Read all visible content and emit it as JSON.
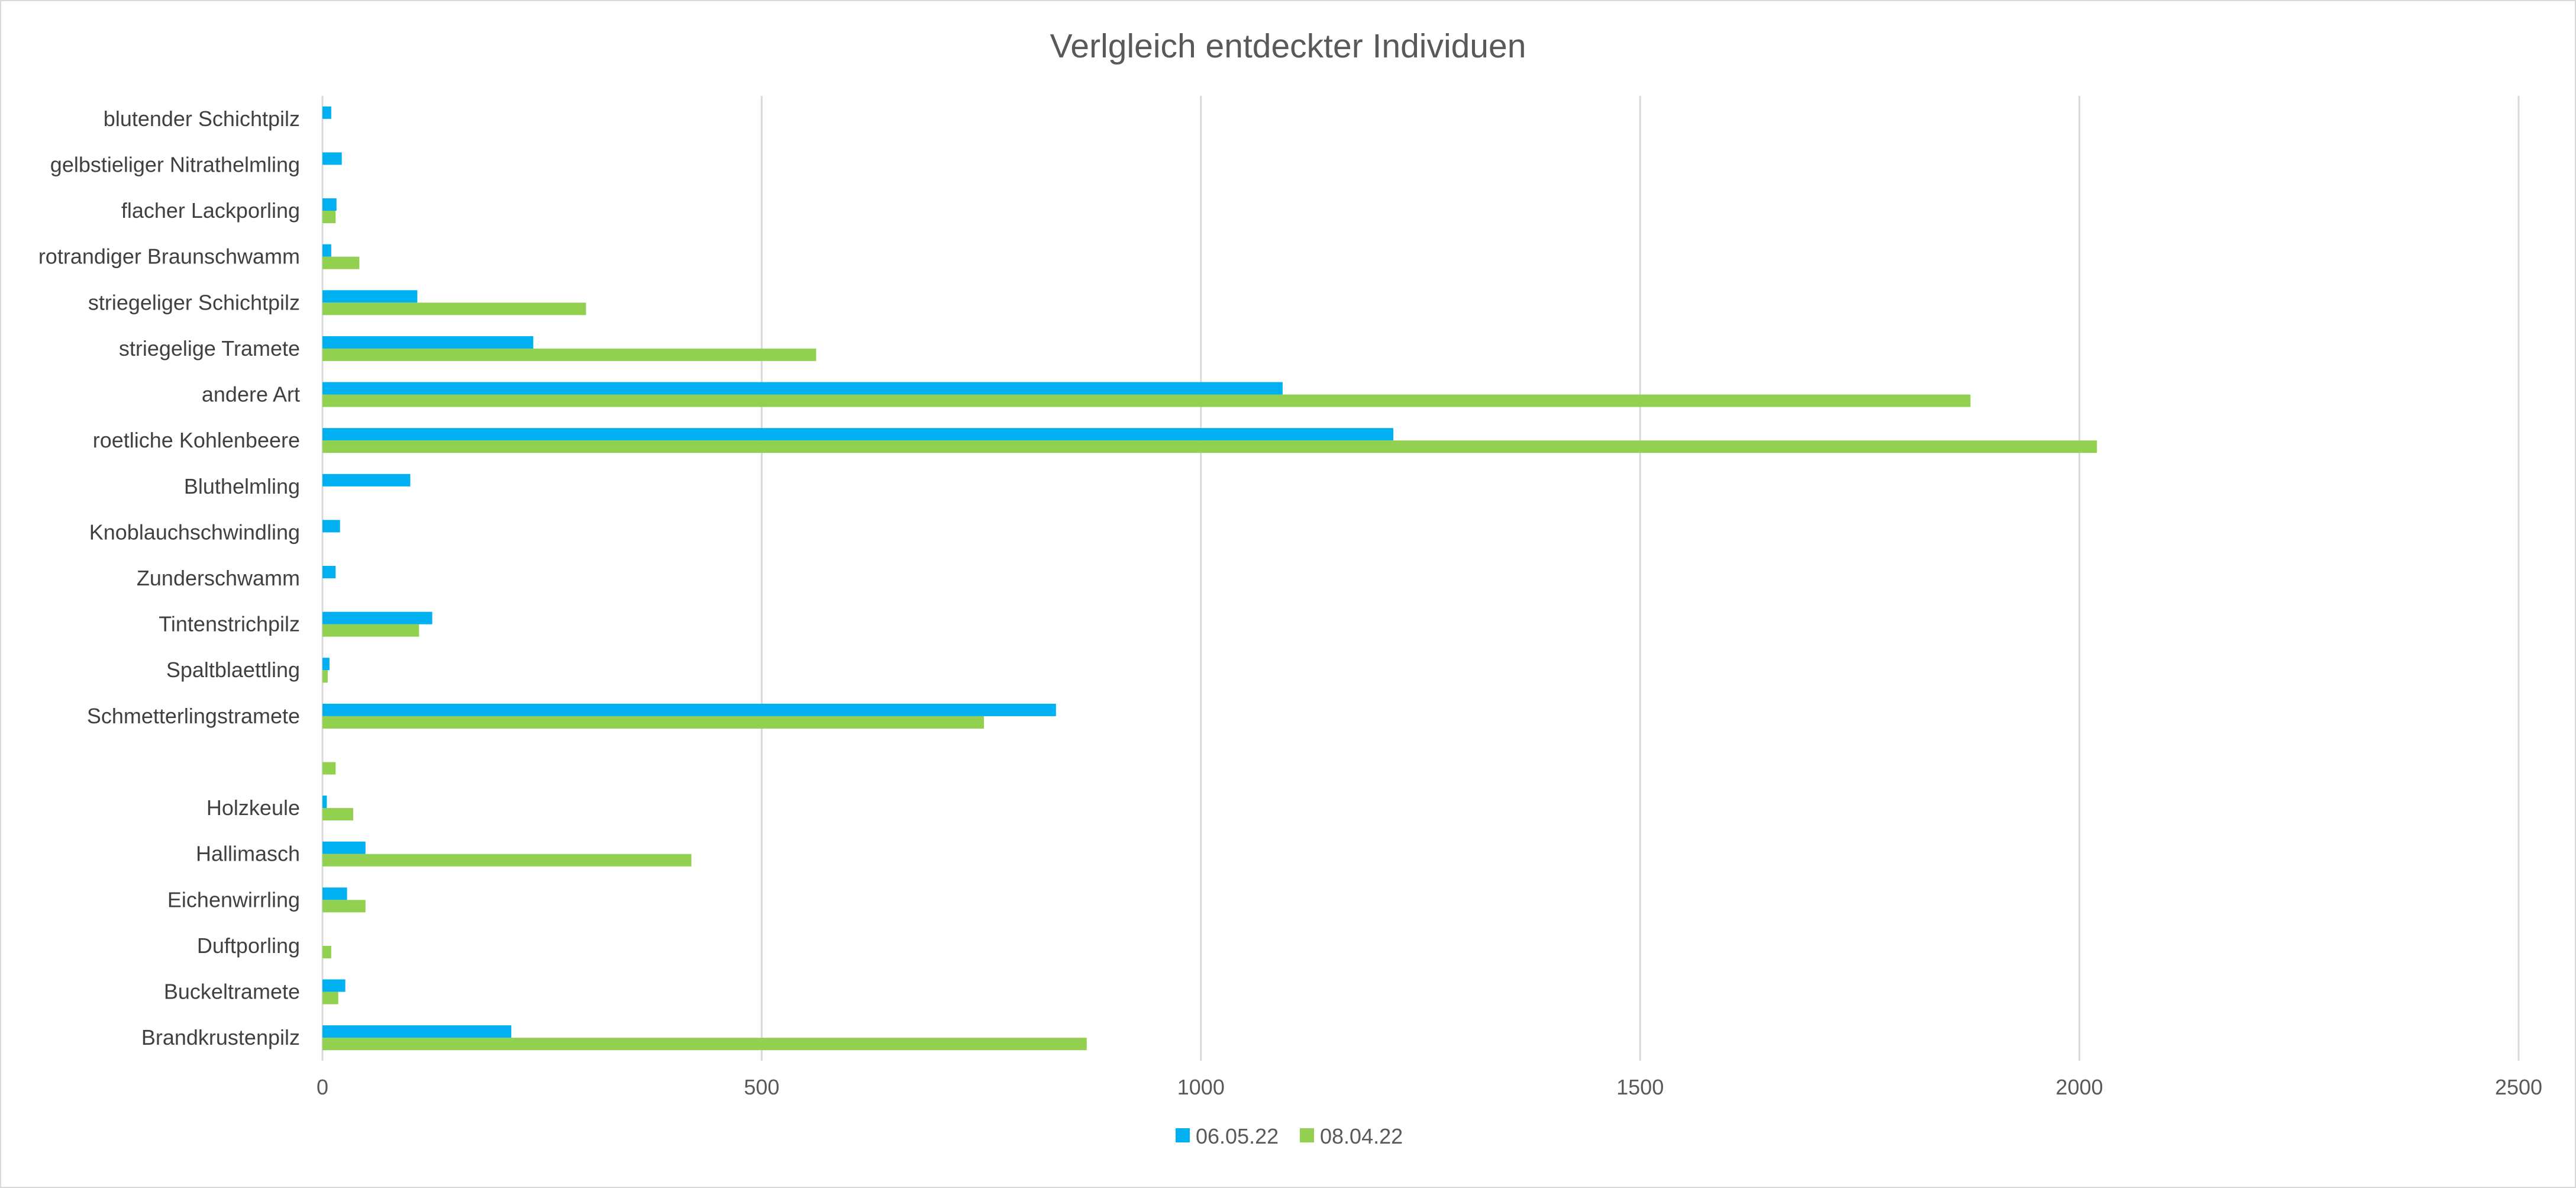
{
  "chart_data": {
    "type": "bar",
    "orientation": "horizontal",
    "title": "Verlgleich entdeckter Individuen",
    "xlabel": "",
    "ylabel": "",
    "xlim": [
      0,
      2500
    ],
    "xticks": [
      0,
      500,
      1000,
      1500,
      2000,
      2500
    ],
    "grid": true,
    "legend_position": "bottom",
    "categories": [
      "blutender Schichtpilz",
      "gelbstieliger Nitrathelmling",
      "flacher Lackporling",
      "rotrandiger Braunschwamm",
      "striegeliger Schichtpilz",
      "striegelige Tramete",
      "andere Art",
      "roetliche Kohlenbeere",
      "Bluthelmling",
      "Knoblauchschwindling",
      "Zunderschwamm",
      "Tintenstrichpilz",
      "Spaltblaettling",
      "Schmetterlingstramete",
      "",
      "Holzkeule",
      "Hallimasch",
      "Eichenwirrling",
      "Duftporling",
      "Buckeltramete",
      "Brandkrustenpilz"
    ],
    "series": [
      {
        "name": "06.05.22",
        "color": "#00B0F0",
        "values": [
          10,
          22,
          16,
          10,
          108,
          240,
          1093,
          1219,
          100,
          20,
          15,
          125,
          8,
          835,
          0,
          5,
          49,
          28,
          0,
          26,
          215
        ]
      },
      {
        "name": "08.04.22",
        "color": "#92D050",
        "values": [
          0,
          0,
          15,
          42,
          300,
          562,
          1876,
          2020,
          0,
          0,
          0,
          110,
          6,
          753,
          15,
          35,
          420,
          49,
          10,
          18,
          870
        ]
      }
    ]
  }
}
